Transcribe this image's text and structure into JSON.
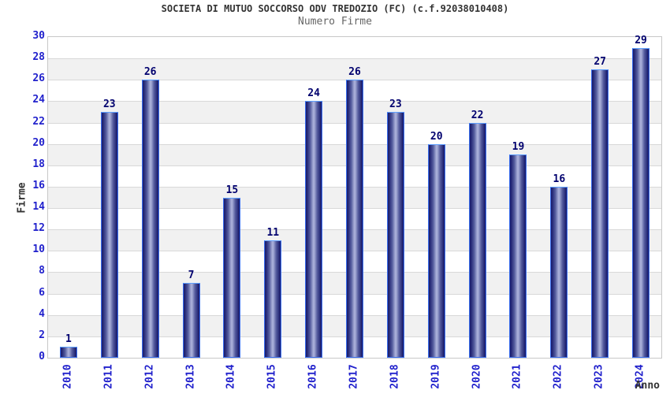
{
  "header": {
    "title": "SOCIETA DI MUTUO SOCCORSO ODV TREDOZIO (FC) (c.f.92038010408)",
    "subtitle": "Numero Firme"
  },
  "chart_data": {
    "type": "bar",
    "title": "SOCIETA DI MUTUO SOCCORSO ODV TREDOZIO (FC) (c.f.92038010408)",
    "subtitle": "Numero Firme",
    "xlabel": "Anno",
    "ylabel": "Firme",
    "categories": [
      "2010",
      "2011",
      "2012",
      "2013",
      "2014",
      "2015",
      "2016",
      "2017",
      "2018",
      "2019",
      "2020",
      "2021",
      "2022",
      "2023",
      "2024"
    ],
    "values": [
      1,
      23,
      26,
      7,
      15,
      11,
      24,
      26,
      23,
      20,
      22,
      19,
      16,
      27,
      29
    ],
    "ylim": [
      0,
      30
    ],
    "ytick_step": 2,
    "grid": true,
    "alternating_bands": true,
    "legend": "none",
    "colors": {
      "title": "#333333",
      "subtitle": "#666666",
      "tick_labels": "#2121cc",
      "value_labels": "#00006e",
      "band": "#f1f1f1",
      "gridline": "#d8d8d8",
      "plot_border": "#c8c8c8",
      "bar_dark": "#1d2070",
      "bar_mid": "#555c9e",
      "bar_light": "#a8aed8",
      "bar_border": "#3a6ff0",
      "bar_border_top": "#5ea0ff"
    }
  }
}
